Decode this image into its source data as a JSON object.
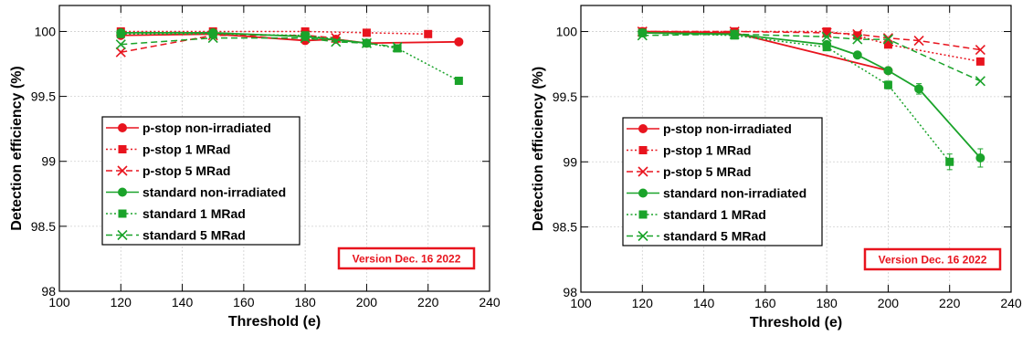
{
  "chart_data": [
    {
      "type": "line",
      "xlabel": "Threshold (e)",
      "ylabel": "Detection efficiency (%)",
      "xlim": [
        100,
        240
      ],
      "ylim": [
        98,
        100.2
      ],
      "xticks": [
        "100",
        "120",
        "140",
        "160",
        "180",
        "200",
        "220",
        "240"
      ],
      "yticks": [
        "98",
        "98.5",
        "99",
        "99.5",
        "100"
      ],
      "grid": true,
      "legend_position": "center-left",
      "annotation": "Version Dec. 16 2022",
      "series": [
        {
          "name": "p-stop non-irradiated",
          "color": "#e8141e",
          "marker": "circle",
          "line": "solid",
          "x": [
            120,
            150,
            180,
            190,
            200,
            230
          ],
          "y": [
            99.97,
            99.98,
            99.93,
            99.94,
            99.91,
            99.92
          ]
        },
        {
          "name": "p-stop 1 MRad",
          "color": "#e8141e",
          "marker": "square",
          "line": "dotted",
          "x": [
            120,
            150,
            180,
            200,
            220
          ],
          "y": [
            100.0,
            100.0,
            100.0,
            99.99,
            99.98
          ]
        },
        {
          "name": "p-stop 5 MRad",
          "color": "#e8141e",
          "marker": "x",
          "line": "dashed",
          "x": [
            120,
            150,
            180,
            190
          ],
          "y": [
            99.84,
            99.97,
            99.97,
            99.95
          ]
        },
        {
          "name": "standard non-irradiated",
          "color": "#1aa32a",
          "marker": "circle",
          "line": "solid",
          "x": [
            120,
            150,
            180,
            200
          ],
          "y": [
            99.99,
            99.99,
            99.96,
            99.91
          ]
        },
        {
          "name": "standard 1 MRad",
          "color": "#1aa32a",
          "marker": "square",
          "line": "dotted",
          "x": [
            120,
            150,
            180,
            200,
            210,
            230
          ],
          "y": [
            99.98,
            99.98,
            99.97,
            99.91,
            99.87,
            99.62
          ]
        },
        {
          "name": "standard 5 MRad",
          "color": "#1aa32a",
          "marker": "x",
          "line": "dashed",
          "x": [
            120,
            150,
            180,
            190,
            200,
            210
          ],
          "y": [
            99.9,
            99.95,
            99.95,
            99.92,
            99.91,
            99.88
          ]
        }
      ]
    },
    {
      "type": "line",
      "xlabel": "Threshold (e)",
      "ylabel": "Detection efficiency (%)",
      "xlim": [
        100,
        240
      ],
      "ylim": [
        98,
        100.2
      ],
      "xticks": [
        "100",
        "120",
        "140",
        "160",
        "180",
        "200",
        "220",
        "240"
      ],
      "yticks": [
        "98",
        "98.5",
        "99",
        "99.5",
        "100"
      ],
      "grid": true,
      "legend_position": "center-left",
      "annotation": "Version Dec. 16 2022",
      "series": [
        {
          "name": "p-stop non-irradiated",
          "color": "#e8141e",
          "marker": "circle",
          "line": "solid",
          "x": [
            120,
            150,
            200
          ],
          "y": [
            100.0,
            99.99,
            99.7
          ]
        },
        {
          "name": "p-stop 1 MRad",
          "color": "#e8141e",
          "marker": "square",
          "line": "dotted",
          "x": [
            120,
            150,
            180,
            190,
            200,
            230
          ],
          "y": [
            100.0,
            100.0,
            100.0,
            99.97,
            99.9,
            99.77
          ]
        },
        {
          "name": "p-stop 5 MRad",
          "color": "#e8141e",
          "marker": "x",
          "line": "dashed",
          "x": [
            120,
            150,
            180,
            190,
            200,
            210,
            230
          ],
          "y": [
            100.0,
            100.0,
            99.99,
            99.98,
            99.95,
            99.93,
            99.86
          ]
        },
        {
          "name": "standard non-irradiated",
          "color": "#1aa32a",
          "marker": "circle",
          "line": "solid",
          "x": [
            120,
            150,
            180,
            190,
            200,
            210,
            230
          ],
          "y": [
            99.99,
            99.98,
            99.9,
            99.82,
            99.7,
            99.56,
            99.03
          ],
          "err": [
            0,
            0,
            0,
            0,
            0.02,
            0.04,
            0.07
          ]
        },
        {
          "name": "standard 1 MRad",
          "color": "#1aa32a",
          "marker": "square",
          "line": "dotted",
          "x": [
            120,
            150,
            180,
            200,
            220
          ],
          "y": [
            99.99,
            99.97,
            99.88,
            99.59,
            99.0
          ],
          "err": [
            0,
            0,
            0,
            0.03,
            0.06
          ]
        },
        {
          "name": "standard 5 MRad",
          "color": "#1aa32a",
          "marker": "x",
          "line": "dashed",
          "x": [
            120,
            150,
            180,
            190,
            200,
            230
          ],
          "y": [
            99.97,
            99.98,
            99.96,
            99.94,
            99.94,
            99.62
          ]
        }
      ]
    }
  ]
}
